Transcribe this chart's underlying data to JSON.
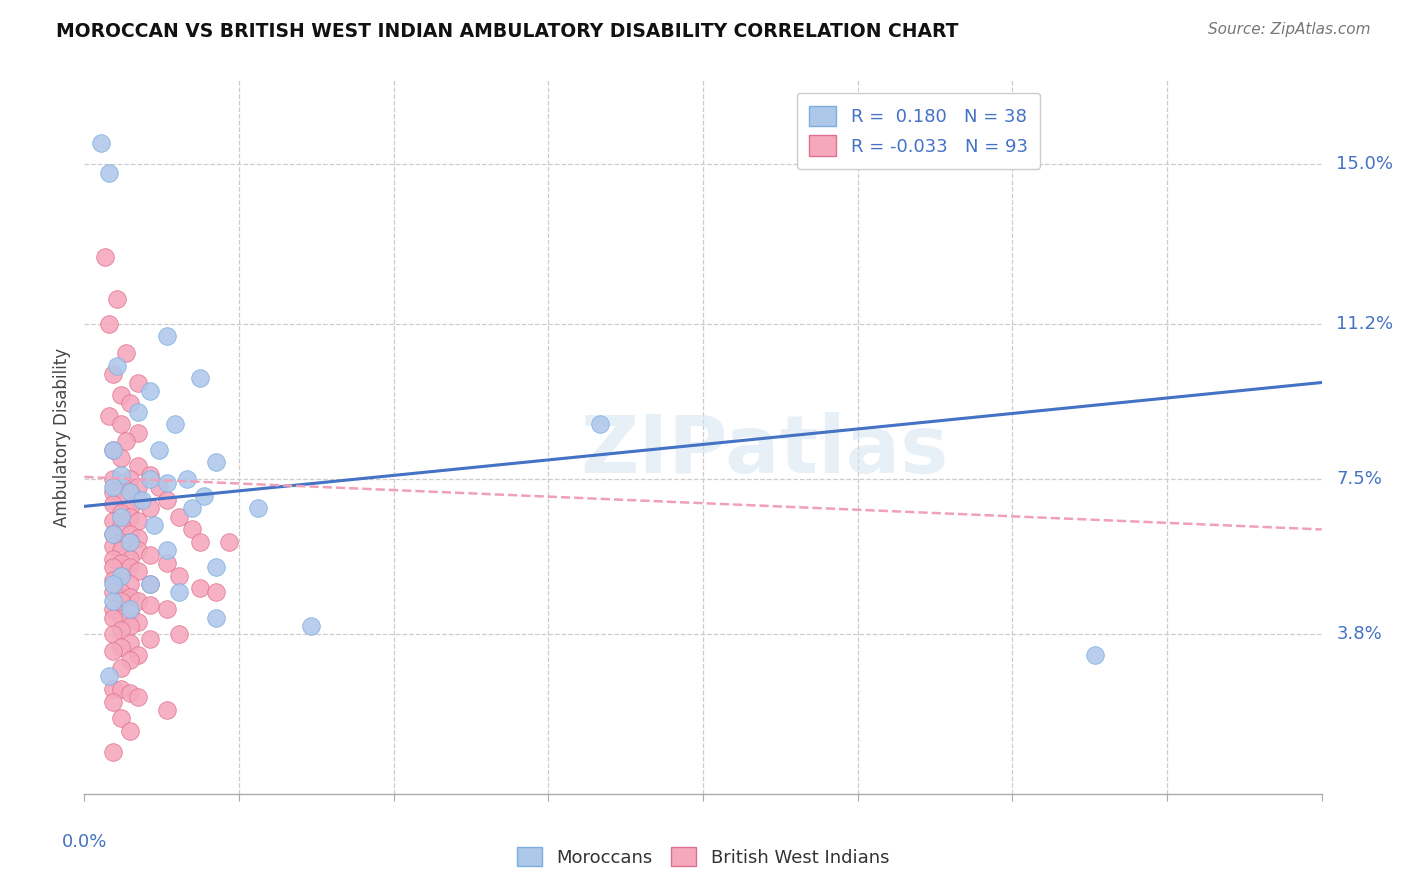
{
  "title": "MOROCCAN VS BRITISH WEST INDIAN AMBULATORY DISABILITY CORRELATION CHART",
  "source": "Source: ZipAtlas.com",
  "ylabel": "Ambulatory Disability",
  "ytick_labels": [
    "15.0%",
    "11.2%",
    "7.5%",
    "3.8%"
  ],
  "ytick_values": [
    0.15,
    0.112,
    0.075,
    0.038
  ],
  "xlim": [
    0.0,
    0.3
  ],
  "ylim": [
    0.0,
    0.17
  ],
  "moroccan_R": 0.18,
  "moroccan_N": 38,
  "bwi_R": -0.033,
  "bwi_N": 93,
  "moroccan_color": "#aec8ea",
  "moroccan_edge": "#7aaee0",
  "bwi_color": "#f5a8bc",
  "bwi_edge": "#e07090",
  "trendline_moroccan_color": "#4472c4",
  "trendline_bwi_color": "#f0a0b8",
  "watermark": "ZIPatlas",
  "moroccan_points_x": [
    0.006,
    0.02,
    0.008,
    0.016,
    0.028,
    0.013,
    0.022,
    0.007,
    0.018,
    0.032,
    0.009,
    0.025,
    0.016,
    0.02,
    0.007,
    0.011,
    0.029,
    0.014,
    0.042,
    0.026,
    0.009,
    0.017,
    0.007,
    0.011,
    0.02,
    0.032,
    0.009,
    0.016,
    0.023,
    0.007,
    0.011,
    0.032,
    0.055,
    0.125,
    0.007,
    0.245,
    0.006,
    0.004
  ],
  "moroccan_points_y": [
    0.148,
    0.109,
    0.102,
    0.096,
    0.099,
    0.091,
    0.088,
    0.082,
    0.082,
    0.079,
    0.076,
    0.075,
    0.075,
    0.074,
    0.073,
    0.072,
    0.071,
    0.07,
    0.068,
    0.068,
    0.066,
    0.064,
    0.062,
    0.06,
    0.058,
    0.054,
    0.052,
    0.05,
    0.048,
    0.046,
    0.044,
    0.042,
    0.04,
    0.088,
    0.05,
    0.033,
    0.028,
    0.155
  ],
  "bwi_points_x": [
    0.005,
    0.008,
    0.006,
    0.01,
    0.007,
    0.013,
    0.009,
    0.011,
    0.006,
    0.009,
    0.013,
    0.01,
    0.007,
    0.009,
    0.013,
    0.016,
    0.011,
    0.007,
    0.009,
    0.013,
    0.018,
    0.011,
    0.007,
    0.009,
    0.013,
    0.02,
    0.007,
    0.011,
    0.016,
    0.009,
    0.023,
    0.011,
    0.007,
    0.013,
    0.009,
    0.026,
    0.011,
    0.007,
    0.013,
    0.009,
    0.028,
    0.011,
    0.007,
    0.013,
    0.009,
    0.016,
    0.011,
    0.007,
    0.02,
    0.009,
    0.007,
    0.011,
    0.013,
    0.009,
    0.023,
    0.007,
    0.016,
    0.011,
    0.028,
    0.009,
    0.007,
    0.032,
    0.011,
    0.013,
    0.009,
    0.016,
    0.007,
    0.02,
    0.011,
    0.009,
    0.007,
    0.013,
    0.011,
    0.009,
    0.023,
    0.007,
    0.016,
    0.011,
    0.009,
    0.007,
    0.013,
    0.011,
    0.009,
    0.007,
    0.035,
    0.009,
    0.011,
    0.013,
    0.007,
    0.02,
    0.009,
    0.011,
    0.007
  ],
  "bwi_points_y": [
    0.128,
    0.118,
    0.112,
    0.105,
    0.1,
    0.098,
    0.095,
    0.093,
    0.09,
    0.088,
    0.086,
    0.084,
    0.082,
    0.08,
    0.078,
    0.076,
    0.075,
    0.075,
    0.074,
    0.073,
    0.073,
    0.072,
    0.072,
    0.071,
    0.07,
    0.07,
    0.069,
    0.068,
    0.068,
    0.067,
    0.066,
    0.066,
    0.065,
    0.065,
    0.064,
    0.063,
    0.062,
    0.062,
    0.061,
    0.06,
    0.06,
    0.06,
    0.059,
    0.058,
    0.058,
    0.057,
    0.056,
    0.056,
    0.055,
    0.055,
    0.054,
    0.054,
    0.053,
    0.052,
    0.052,
    0.051,
    0.05,
    0.05,
    0.049,
    0.048,
    0.048,
    0.048,
    0.047,
    0.046,
    0.046,
    0.045,
    0.044,
    0.044,
    0.043,
    0.042,
    0.042,
    0.041,
    0.04,
    0.039,
    0.038,
    0.038,
    0.037,
    0.036,
    0.035,
    0.034,
    0.033,
    0.032,
    0.03,
    0.025,
    0.06,
    0.025,
    0.024,
    0.023,
    0.022,
    0.02,
    0.018,
    0.015,
    0.01
  ],
  "mor_trend_x0": 0.0,
  "mor_trend_y0": 0.0685,
  "mor_trend_x1": 0.3,
  "mor_trend_y1": 0.098,
  "bwi_trend_x0": 0.0,
  "bwi_trend_y0": 0.0755,
  "bwi_trend_x1": 0.3,
  "bwi_trend_y1": 0.063
}
